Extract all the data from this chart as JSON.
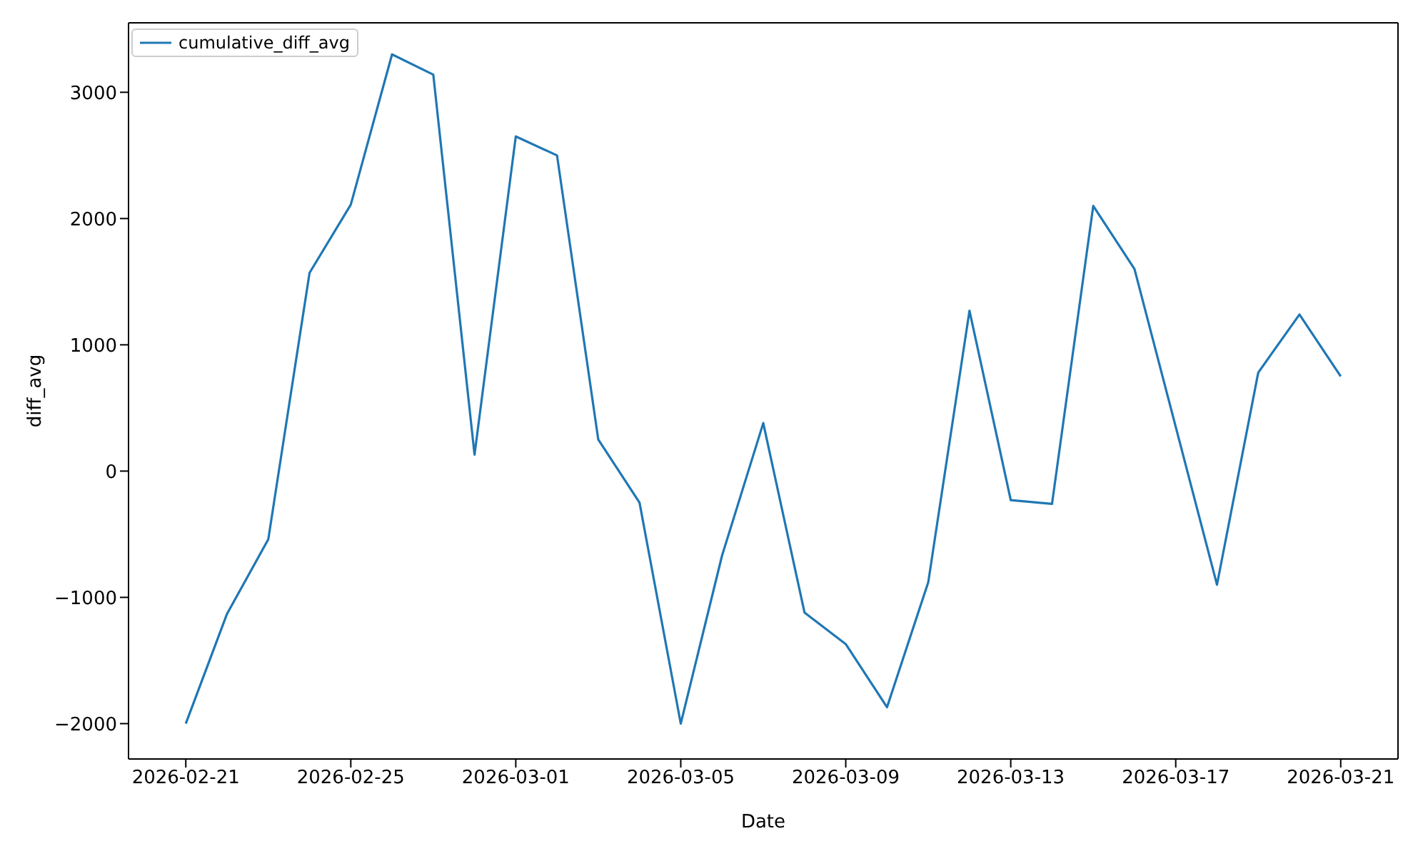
{
  "chart_data": {
    "type": "line",
    "xlabel": "Date",
    "ylabel": "diff_avg",
    "x": [
      "2026-02-21",
      "2026-02-22",
      "2026-02-23",
      "2026-02-24",
      "2026-02-25",
      "2026-02-26",
      "2026-02-27",
      "2026-02-28",
      "2026-03-01",
      "2026-03-02",
      "2026-03-03",
      "2026-03-04",
      "2026-03-05",
      "2026-03-06",
      "2026-03-07",
      "2026-03-08",
      "2026-03-09",
      "2026-03-10",
      "2026-03-11",
      "2026-03-12",
      "2026-03-13",
      "2026-03-14",
      "2026-03-15",
      "2026-03-16",
      "2026-03-17",
      "2026-03-18",
      "2026-03-19",
      "2026-03-20",
      "2026-03-21"
    ],
    "series": [
      {
        "name": "cumulative_diff_avg",
        "color": "#1f77b4",
        "values": [
          -2000,
          -1130,
          -540,
          1570,
          2110,
          3300,
          3140,
          130,
          2650,
          2500,
          250,
          -250,
          -2000,
          -670,
          380,
          -1120,
          -1370,
          -1870,
          -880,
          1270,
          -230,
          -260,
          2100,
          1600,
          350,
          -900,
          780,
          1240,
          750
        ]
      }
    ],
    "xlim": [
      "2026-02-19T14:40",
      "2026-03-22T09:20"
    ],
    "xticks": [
      "2026-02-21",
      "2026-02-25",
      "2026-03-01",
      "2026-03-05",
      "2026-03-09",
      "2026-03-13",
      "2026-03-17",
      "2026-03-21"
    ],
    "ylim": [
      -2280,
      3550
    ],
    "yticks": [
      -2000,
      -1000,
      0,
      1000,
      2000,
      3000
    ],
    "grid": false,
    "legend": "top left",
    "marker": "none",
    "line_style": "solid"
  }
}
